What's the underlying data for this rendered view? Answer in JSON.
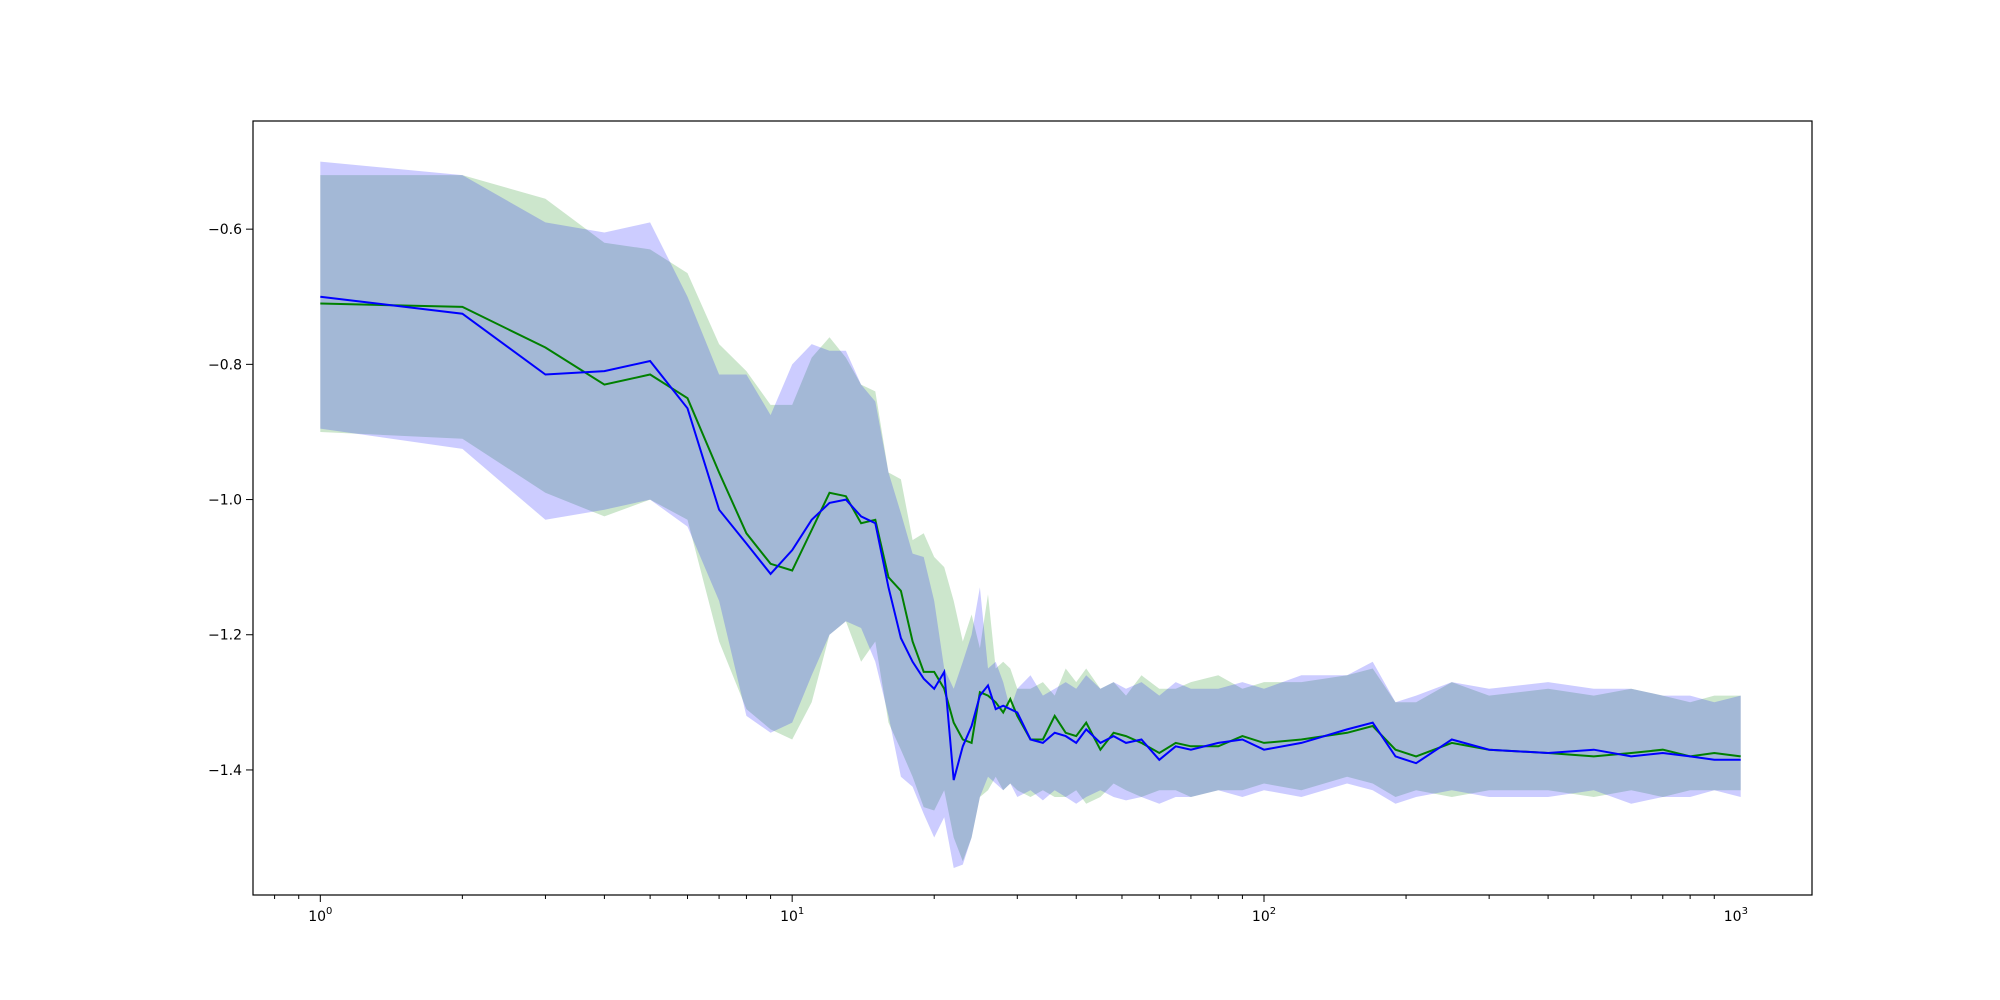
{
  "chart_data": {
    "type": "line",
    "title": "",
    "xlabel": "",
    "ylabel": "",
    "x_scale": "log",
    "xlim": [
      0.72,
      1450
    ],
    "ylim": [
      -1.585,
      -0.44
    ],
    "grid": false,
    "legend": "none",
    "x_ticks": [
      {
        "value": 1,
        "base": "10",
        "exp": "0"
      },
      {
        "value": 10,
        "base": "10",
        "exp": "1"
      },
      {
        "value": 100,
        "base": "10",
        "exp": "2"
      },
      {
        "value": 1000,
        "base": "10",
        "exp": "3"
      }
    ],
    "y_ticks": [
      {
        "value": -0.6,
        "label": "−0.6"
      },
      {
        "value": -0.8,
        "label": "−0.8"
      },
      {
        "value": -1.0,
        "label": "−1.0"
      },
      {
        "value": -1.2,
        "label": "−1.2"
      },
      {
        "value": -1.4,
        "label": "−1.4"
      }
    ],
    "series": [
      {
        "color": "#008000",
        "band_color": "#008000",
        "band_opacity": 0.2,
        "x": [
          1,
          2,
          3,
          4,
          5,
          6,
          7,
          8,
          9,
          10,
          11,
          12,
          13,
          14,
          15,
          16,
          17,
          18,
          19,
          20,
          21,
          22,
          23,
          24,
          25,
          26,
          27,
          28,
          29,
          30,
          32,
          34,
          36,
          38,
          40,
          42,
          45,
          48,
          51,
          55,
          60,
          65,
          70,
          80,
          90,
          100,
          120,
          150,
          170,
          190,
          210,
          250,
          300,
          400,
          500,
          600,
          700,
          800,
          900,
          1024
        ],
        "mean": [
          -0.71,
          -0.715,
          -0.775,
          -0.83,
          -0.815,
          -0.85,
          -0.96,
          -1.05,
          -1.095,
          -1.105,
          -1.045,
          -0.99,
          -0.995,
          -1.035,
          -1.03,
          -1.115,
          -1.135,
          -1.21,
          -1.255,
          -1.255,
          -1.28,
          -1.33,
          -1.355,
          -1.36,
          -1.285,
          -1.29,
          -1.3,
          -1.315,
          -1.295,
          -1.32,
          -1.355,
          -1.355,
          -1.32,
          -1.345,
          -1.35,
          -1.33,
          -1.37,
          -1.345,
          -1.35,
          -1.36,
          -1.375,
          -1.36,
          -1.365,
          -1.365,
          -1.35,
          -1.36,
          -1.355,
          -1.345,
          -1.335,
          -1.37,
          -1.38,
          -1.36,
          -1.37,
          -1.375,
          -1.38,
          -1.375,
          -1.37,
          -1.38,
          -1.375,
          -1.38
        ],
        "upper": [
          -0.52,
          -0.52,
          -0.555,
          -0.62,
          -0.63,
          -0.665,
          -0.77,
          -0.81,
          -0.86,
          -0.86,
          -0.79,
          -0.76,
          -0.79,
          -0.83,
          -0.84,
          -0.96,
          -0.97,
          -1.06,
          -1.05,
          -1.085,
          -1.1,
          -1.15,
          -1.21,
          -1.17,
          -1.22,
          -1.14,
          -1.25,
          -1.24,
          -1.25,
          -1.28,
          -1.28,
          -1.27,
          -1.29,
          -1.25,
          -1.27,
          -1.25,
          -1.28,
          -1.27,
          -1.29,
          -1.26,
          -1.28,
          -1.28,
          -1.27,
          -1.26,
          -1.28,
          -1.27,
          -1.27,
          -1.26,
          -1.25,
          -1.3,
          -1.3,
          -1.27,
          -1.29,
          -1.28,
          -1.29,
          -1.28,
          -1.29,
          -1.3,
          -1.29,
          -1.29
        ],
        "lower": [
          -0.9,
          -0.91,
          -0.99,
          -1.025,
          -1.0,
          -1.03,
          -1.21,
          -1.31,
          -1.34,
          -1.355,
          -1.3,
          -1.2,
          -1.18,
          -1.24,
          -1.21,
          -1.33,
          -1.37,
          -1.41,
          -1.455,
          -1.46,
          -1.43,
          -1.5,
          -1.535,
          -1.5,
          -1.44,
          -1.43,
          -1.41,
          -1.43,
          -1.42,
          -1.43,
          -1.44,
          -1.43,
          -1.44,
          -1.44,
          -1.43,
          -1.45,
          -1.44,
          -1.42,
          -1.43,
          -1.44,
          -1.43,
          -1.43,
          -1.44,
          -1.43,
          -1.43,
          -1.42,
          -1.43,
          -1.41,
          -1.42,
          -1.44,
          -1.43,
          -1.44,
          -1.43,
          -1.43,
          -1.44,
          -1.43,
          -1.44,
          -1.43,
          -1.43,
          -1.43
        ]
      },
      {
        "color": "#0000ff",
        "band_color": "#0000ff",
        "band_opacity": 0.2,
        "x": [
          1,
          2,
          3,
          4,
          5,
          6,
          7,
          8,
          9,
          10,
          11,
          12,
          13,
          14,
          15,
          16,
          17,
          18,
          19,
          20,
          21,
          22,
          23,
          24,
          25,
          26,
          27,
          28,
          29,
          30,
          32,
          34,
          36,
          38,
          40,
          42,
          45,
          48,
          51,
          55,
          60,
          65,
          70,
          80,
          90,
          100,
          120,
          150,
          170,
          190,
          210,
          250,
          300,
          400,
          500,
          600,
          700,
          800,
          900,
          1024
        ],
        "mean": [
          -0.7,
          -0.725,
          -0.815,
          -0.81,
          -0.795,
          -0.865,
          -1.015,
          -1.065,
          -1.11,
          -1.075,
          -1.03,
          -1.005,
          -1.0,
          -1.025,
          -1.035,
          -1.13,
          -1.205,
          -1.24,
          -1.265,
          -1.28,
          -1.255,
          -1.415,
          -1.365,
          -1.335,
          -1.29,
          -1.275,
          -1.31,
          -1.305,
          -1.31,
          -1.315,
          -1.355,
          -1.36,
          -1.345,
          -1.35,
          -1.36,
          -1.34,
          -1.36,
          -1.35,
          -1.36,
          -1.355,
          -1.385,
          -1.365,
          -1.37,
          -1.36,
          -1.355,
          -1.37,
          -1.36,
          -1.34,
          -1.33,
          -1.38,
          -1.39,
          -1.355,
          -1.37,
          -1.375,
          -1.37,
          -1.38,
          -1.375,
          -1.38,
          -1.385,
          -1.385
        ],
        "upper": [
          -0.5,
          -0.52,
          -0.59,
          -0.605,
          -0.59,
          -0.7,
          -0.815,
          -0.815,
          -0.875,
          -0.8,
          -0.77,
          -0.78,
          -0.78,
          -0.83,
          -0.855,
          -0.96,
          -1.02,
          -1.08,
          -1.085,
          -1.15,
          -1.25,
          -1.28,
          -1.24,
          -1.2,
          -1.13,
          -1.25,
          -1.24,
          -1.27,
          -1.31,
          -1.28,
          -1.26,
          -1.29,
          -1.28,
          -1.27,
          -1.28,
          -1.26,
          -1.28,
          -1.27,
          -1.28,
          -1.27,
          -1.29,
          -1.27,
          -1.28,
          -1.28,
          -1.27,
          -1.28,
          -1.26,
          -1.26,
          -1.24,
          -1.3,
          -1.29,
          -1.27,
          -1.28,
          -1.27,
          -1.28,
          -1.28,
          -1.29,
          -1.29,
          -1.3,
          -1.29
        ],
        "lower": [
          -0.895,
          -0.925,
          -1.03,
          -1.015,
          -1.0,
          -1.04,
          -1.15,
          -1.32,
          -1.345,
          -1.33,
          -1.26,
          -1.2,
          -1.18,
          -1.19,
          -1.24,
          -1.32,
          -1.41,
          -1.425,
          -1.465,
          -1.5,
          -1.47,
          -1.545,
          -1.54,
          -1.5,
          -1.44,
          -1.41,
          -1.42,
          -1.43,
          -1.42,
          -1.44,
          -1.43,
          -1.445,
          -1.43,
          -1.44,
          -1.45,
          -1.44,
          -1.43,
          -1.44,
          -1.445,
          -1.44,
          -1.45,
          -1.44,
          -1.44,
          -1.43,
          -1.44,
          -1.43,
          -1.44,
          -1.42,
          -1.43,
          -1.45,
          -1.44,
          -1.43,
          -1.44,
          -1.44,
          -1.43,
          -1.45,
          -1.44,
          -1.44,
          -1.43,
          -1.44
        ]
      }
    ]
  }
}
